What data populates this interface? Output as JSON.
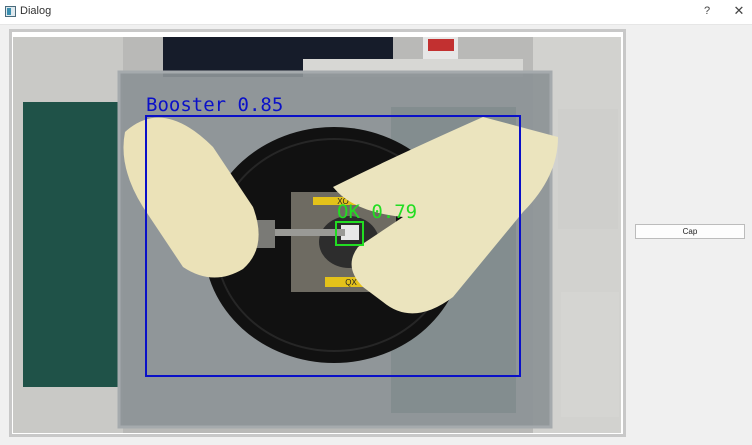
{
  "window": {
    "title": "Dialog",
    "help_label": "?",
    "close_label": "✕"
  },
  "camera_view": {
    "detections": [
      {
        "label": "Booster 0.85",
        "color": "#0a10c8"
      },
      {
        "label": "OK 0.79",
        "color": "#22dd22"
      }
    ],
    "fixture_labels": {
      "top": "XO",
      "bottom": "QX"
    }
  },
  "actions": {
    "cap_label": "Cap"
  }
}
